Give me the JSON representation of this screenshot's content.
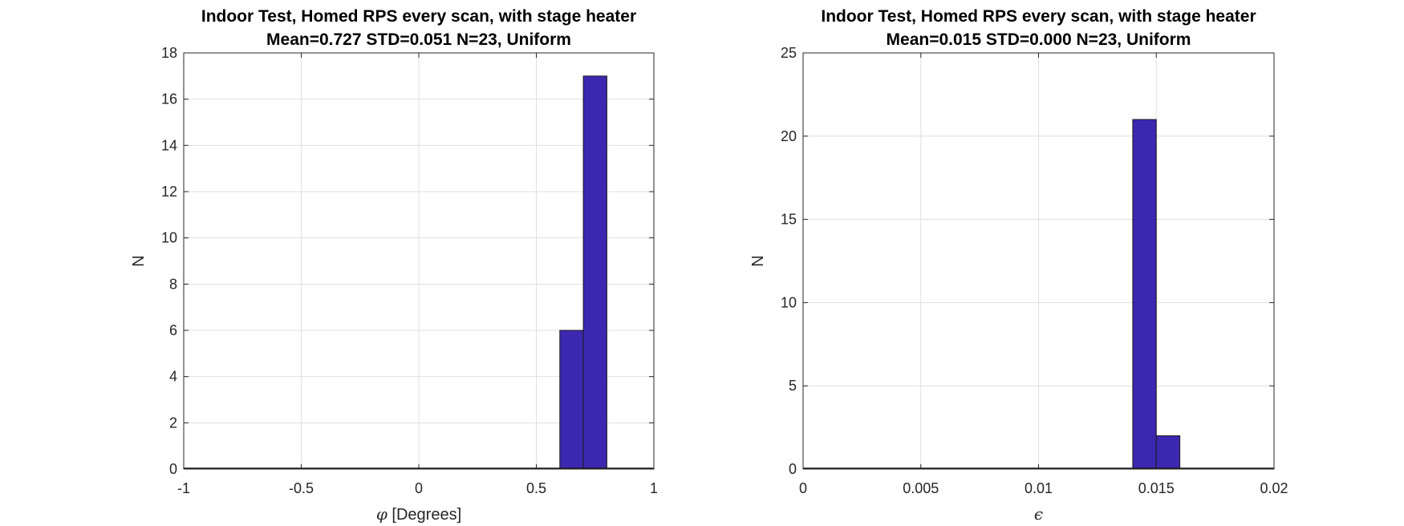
{
  "chart_data": [
    {
      "type": "bar",
      "title_line1": "Indoor Test, Homed RPS every scan, with stage heater",
      "title_line2": "Mean=0.727 STD=0.051 N=23, Uniform",
      "xlabel_symbol": "φ",
      "xlabel_text": " [Degrees]",
      "ylabel": "N",
      "xlim": [
        -1,
        1
      ],
      "ylim": [
        0,
        18
      ],
      "xticks": [
        -1,
        -0.5,
        0,
        0.5,
        1
      ],
      "xtick_labels": [
        "-1",
        "-0.5",
        "0",
        "0.5",
        "1"
      ],
      "yticks": [
        0,
        2,
        4,
        6,
        8,
        10,
        12,
        14,
        16,
        18
      ],
      "ytick_labels": [
        "0",
        "2",
        "4",
        "6",
        "8",
        "10",
        "12",
        "14",
        "16",
        "18"
      ],
      "grid": true,
      "bar_color": "#3c28b0",
      "bins": [
        {
          "x0": 0.6,
          "x1": 0.7,
          "value": 6
        },
        {
          "x0": 0.7,
          "x1": 0.8,
          "value": 17
        }
      ]
    },
    {
      "type": "bar",
      "title_line1": "Indoor Test, Homed RPS every scan, with stage heater",
      "title_line2": "Mean=0.015 STD=0.000 N=23, Uniform",
      "xlabel_symbol": "ϵ",
      "xlabel_text": "",
      "ylabel": "N",
      "xlim": [
        0,
        0.02
      ],
      "ylim": [
        0,
        25
      ],
      "xticks": [
        0,
        0.005,
        0.01,
        0.015,
        0.02
      ],
      "xtick_labels": [
        "0",
        "0.005",
        "0.01",
        "0.015",
        "0.02"
      ],
      "yticks": [
        0,
        5,
        10,
        15,
        20,
        25
      ],
      "ytick_labels": [
        "0",
        "5",
        "10",
        "15",
        "20",
        "25"
      ],
      "grid": true,
      "bar_color": "#3c28b0",
      "bins": [
        {
          "x0": 0.014,
          "x1": 0.015,
          "value": 21
        },
        {
          "x0": 0.015,
          "x1": 0.016,
          "value": 2
        }
      ]
    }
  ]
}
